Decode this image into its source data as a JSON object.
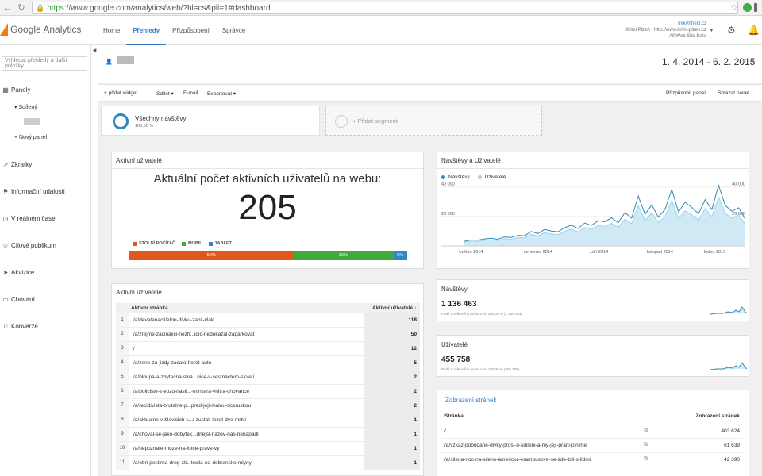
{
  "browser": {
    "url_https": "https",
    "url_rest": "://www.google.com/analytics/web/?hl=cs&pli=1#dashboard"
  },
  "app": {
    "logo_text": "Google Analytics",
    "tabs": [
      "Home",
      "Přehledy",
      "Přizpůsobení",
      "Správce"
    ],
    "active_tab": "Přehledy",
    "account_email": "miki@helb.cz",
    "account_site": "Krimi Plzeň - http://www.krimi-plzen.cz",
    "account_view": "All Web Site Data"
  },
  "sidebar": {
    "search_placeholder": "Vyhledat přehledy a další položky",
    "items": [
      {
        "label": "Panely",
        "icon": "grid-icon"
      },
      {
        "label": "Zkratky",
        "icon": "arrow-icon"
      },
      {
        "label": "Informační události",
        "icon": "flag-icon"
      },
      {
        "label": "V reálném čase",
        "icon": "clock-icon"
      },
      {
        "label": "Cílové publikum",
        "icon": "people-icon"
      },
      {
        "label": "Akvizice",
        "icon": "acquisition-icon"
      },
      {
        "label": "Chování",
        "icon": "behavior-icon"
      },
      {
        "label": "Konverze",
        "icon": "conversion-icon"
      }
    ],
    "shared_label": "▾ Sdílený",
    "new_panel": "+ Nový panel"
  },
  "header": {
    "date_range": "1. 4. 2014 - 6. 2. 2015"
  },
  "toolbar": {
    "add_widget": "+ přidat widget",
    "share": "Sdílet ▾",
    "email": "E-mail",
    "export": "Exportovat ▾",
    "customize": "Přizpůsobit panel",
    "delete": "Smazat panel"
  },
  "segments": {
    "current_name": "Všechny návštěvy",
    "current_pct": "100,00 %",
    "add_label": "+ Přidat segment"
  },
  "realtime": {
    "title": "Aktivní uživatelé",
    "heading": "Aktuální počet aktivních uživatelů na webu:",
    "count": "205",
    "legend": [
      {
        "label": "STOLNÍ POČÍTAČ",
        "color": "#e2571e"
      },
      {
        "label": "MOBIL",
        "color": "#44a83e"
      },
      {
        "label": "TABLET",
        "color": "#2d8ac7"
      }
    ],
    "bar": [
      {
        "label": "59%",
        "pct": 59,
        "color": "#e2571e"
      },
      {
        "label": "36%",
        "pct": 36,
        "color": "#44a83e"
      },
      {
        "label": "5%",
        "pct": 5,
        "color": "#2d8ac7"
      }
    ]
  },
  "active_table": {
    "title": "Aktivní uživatelé",
    "col_page": "Aktivní stránka",
    "col_active": "Aktivní uživatelé ↓",
    "rows": [
      {
        "n": "1",
        "page": "/a/devatenactiletou-divku-zabil-vlak",
        "v": "118"
      },
      {
        "n": "2",
        "page": "/a/zrejme-zacinajici-nezh...idic-nedokazal-zaparkovat",
        "v": "50"
      },
      {
        "n": "3",
        "page": "/",
        "v": "12"
      },
      {
        "n": "4",
        "page": "/a/zene-za-jizdy-zacalo-horet-auto",
        "v": "5"
      },
      {
        "n": "5",
        "page": "/a/hloupa-a-zbytecna-stva...nice-v-sestnactem-stoleti",
        "v": "2"
      },
      {
        "n": "6",
        "page": "/a/policiste-z-vozu-nasil...-ministra-vnitra-chovance",
        "v": "2"
      },
      {
        "n": "7",
        "page": "/a/recidivista-brutalne-p...pred-jeji-malou-dceruskou",
        "v": "2"
      },
      {
        "n": "8",
        "page": "/a/aktualne-v-blovicich-s...i-zustali-lezet-dva-mrtvi",
        "v": "1"
      },
      {
        "n": "9",
        "page": "/a/choval-se-jako-dobytek...dnejsi-nazev-nas-nenapadl",
        "v": "1"
      },
      {
        "n": "10",
        "page": "/a/nepoznate-muze-na-fotce-prave-vy",
        "v": "1"
      },
      {
        "n": "11",
        "page": "/a/obri-pestirna-drog-zti...tocila-na-dobranske-mlyny",
        "v": "1"
      }
    ]
  },
  "chart_data": {
    "type": "line",
    "title": "Návštěvy a Uživatelé",
    "series": [
      {
        "name": "Návštěvy",
        "color": "#2b8ab8",
        "values": [
          3200,
          4100,
          3900,
          4800,
          5200,
          4600,
          6100,
          5800,
          7200,
          6900,
          9800,
          8400,
          11200,
          10100,
          9600,
          12400,
          14100,
          11800,
          15600,
          13900,
          17200,
          16400,
          19100,
          15800,
          22600,
          18900,
          33800,
          21400,
          27900,
          19600,
          24800,
          38400,
          23100,
          29600,
          26200,
          21800,
          31500,
          24700,
          41200,
          27400,
          23600,
          25900,
          18200
        ]
      },
      {
        "name": "Uživatelé",
        "color": "#9fd3ea",
        "values": [
          2600,
          3300,
          3100,
          3900,
          4200,
          3700,
          4900,
          4600,
          5800,
          5500,
          7900,
          6800,
          9000,
          8100,
          7700,
          10000,
          11400,
          9500,
          12600,
          11200,
          13900,
          13200,
          15400,
          12700,
          18200,
          15200,
          27200,
          17200,
          22500,
          15800,
          20000,
          30900,
          18600,
          23800,
          21100,
          17600,
          25400,
          19900,
          33200,
          22100,
          19000,
          20900,
          14700
        ]
      }
    ],
    "x_ticks": [
      "květen 2014",
      "červenec 2014",
      "září 2014",
      "listopad 2014",
      "leden 2015"
    ],
    "y_ticks_left": [
      "40 000",
      "20 000"
    ],
    "y_ticks_right": [
      "40 000",
      "20 000"
    ],
    "ylim": [
      0,
      42000
    ]
  },
  "metrics": {
    "visits": {
      "title": "Návštěvy",
      "value": "1 136 463",
      "sub": "Podíl z celkového počtu v %: 100,00 % (1 136 463)"
    },
    "users": {
      "title": "Uživatelé",
      "value": "455 758",
      "sub": "Podíl z celkového počtu v %: 100,00 % (455 758)"
    }
  },
  "pageviews": {
    "title": "Zobrazení stránek",
    "col_page": "Stránka",
    "col_views": "Zobrazení stránek",
    "rows": [
      {
        "page": "/",
        "v": "403 624"
      },
      {
        "page": "/a/vzkaz-pobodane-divky-prosi-o-sdileni-a-my-jeji-prani-plnime",
        "v": "61 639"
      },
      {
        "page": "/a/silena-noc-na-silene-americke-krampusove-se-zde-bili-s-lidmi",
        "v": "42 390"
      }
    ]
  },
  "colors": {
    "accent": "#3b79c7",
    "visits_line": "#2b8ab8",
    "users_line": "#9fd3ea"
  }
}
